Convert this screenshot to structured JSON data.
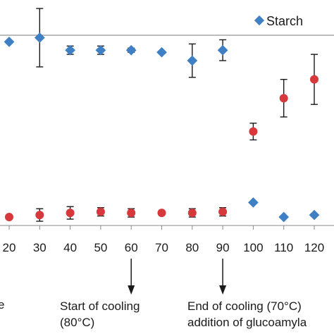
{
  "chart_data": {
    "type": "scatter",
    "x_ticks": [
      "20",
      "30",
      "40",
      "50",
      "60",
      "70",
      "80",
      "90",
      "100",
      "110",
      "120"
    ],
    "x_range": [
      20,
      120
    ],
    "series": [
      {
        "name": "Starch",
        "marker": "diamond",
        "color": "#3f7fc3",
        "points": [
          {
            "x": 20,
            "y": 0.85,
            "err": 0
          },
          {
            "x": 30,
            "y": 0.87,
            "err": 0.14
          },
          {
            "x": 40,
            "y": 0.81,
            "err": 0.02
          },
          {
            "x": 50,
            "y": 0.81,
            "err": 0.02
          },
          {
            "x": 60,
            "y": 0.81,
            "err": 0.01
          },
          {
            "x": 70,
            "y": 0.8,
            "err": 0
          },
          {
            "x": 80,
            "y": 0.76,
            "err": 0.08
          },
          {
            "x": 90,
            "y": 0.81,
            "err": 0.05
          },
          {
            "x": 100,
            "y": 0.08,
            "err": 0
          },
          {
            "x": 110,
            "y": 0.01,
            "err": 0
          },
          {
            "x": 120,
            "y": 0.02,
            "err": 0
          }
        ]
      },
      {
        "name": "",
        "marker": "circle",
        "color": "#d6383c",
        "points": [
          {
            "x": 20,
            "y": 0.01,
            "err": 0
          },
          {
            "x": 30,
            "y": 0.02,
            "err": 0.03
          },
          {
            "x": 40,
            "y": 0.03,
            "err": 0.03
          },
          {
            "x": 50,
            "y": 0.035,
            "err": 0.02
          },
          {
            "x": 60,
            "y": 0.03,
            "err": 0.02
          },
          {
            "x": 70,
            "y": 0.03,
            "err": 0
          },
          {
            "x": 80,
            "y": 0.03,
            "err": 0.02
          },
          {
            "x": 90,
            "y": 0.035,
            "err": 0.02
          },
          {
            "x": 100,
            "y": 0.42,
            "err": 0.04
          },
          {
            "x": 110,
            "y": 0.58,
            "err": 0.09
          },
          {
            "x": 120,
            "y": 0.67,
            "err": 0.12
          }
        ]
      }
    ],
    "legend": {
      "label": "Starch",
      "position": "top-right"
    },
    "annotations": [
      {
        "x": 60,
        "lines": [
          "Start of cooling",
          "(80°C)"
        ]
      },
      {
        "x": 90,
        "lines": [
          "End of cooling (70°C)",
          "addition of glucoamyla"
        ]
      }
    ],
    "edge_label": "e"
  }
}
